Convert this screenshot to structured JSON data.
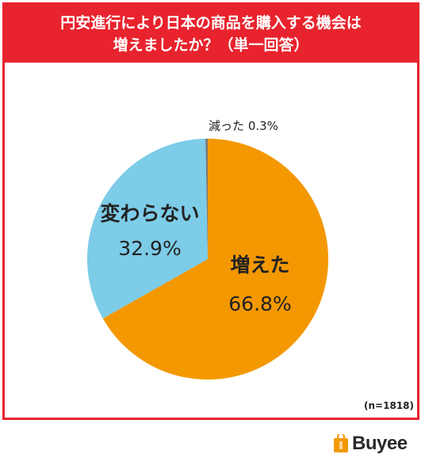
{
  "header": {
    "title_line1": "円安進行により日本の商品を購入する機会は",
    "title_line2": "増えましたか？（単一回答）"
  },
  "chart_data": {
    "type": "pie",
    "slices": [
      {
        "label": "増えた",
        "value": 66.8,
        "value_label": "66.8%",
        "color": "#f39800"
      },
      {
        "label": "変わらない",
        "value": 32.9,
        "value_label": "32.9%",
        "color": "#7dcce8"
      },
      {
        "label": "減った",
        "value": 0.3,
        "value_label": "0.3%",
        "color": "#7a7a7a"
      }
    ],
    "start": "12 o'clock",
    "direction": "clockwise"
  },
  "footer": {
    "sample_size": "(n=1818)",
    "brand_name": "Buyee"
  },
  "colors": {
    "banner": "#e8232d",
    "border": "#e8232d",
    "brand_icon": "#f39800"
  }
}
